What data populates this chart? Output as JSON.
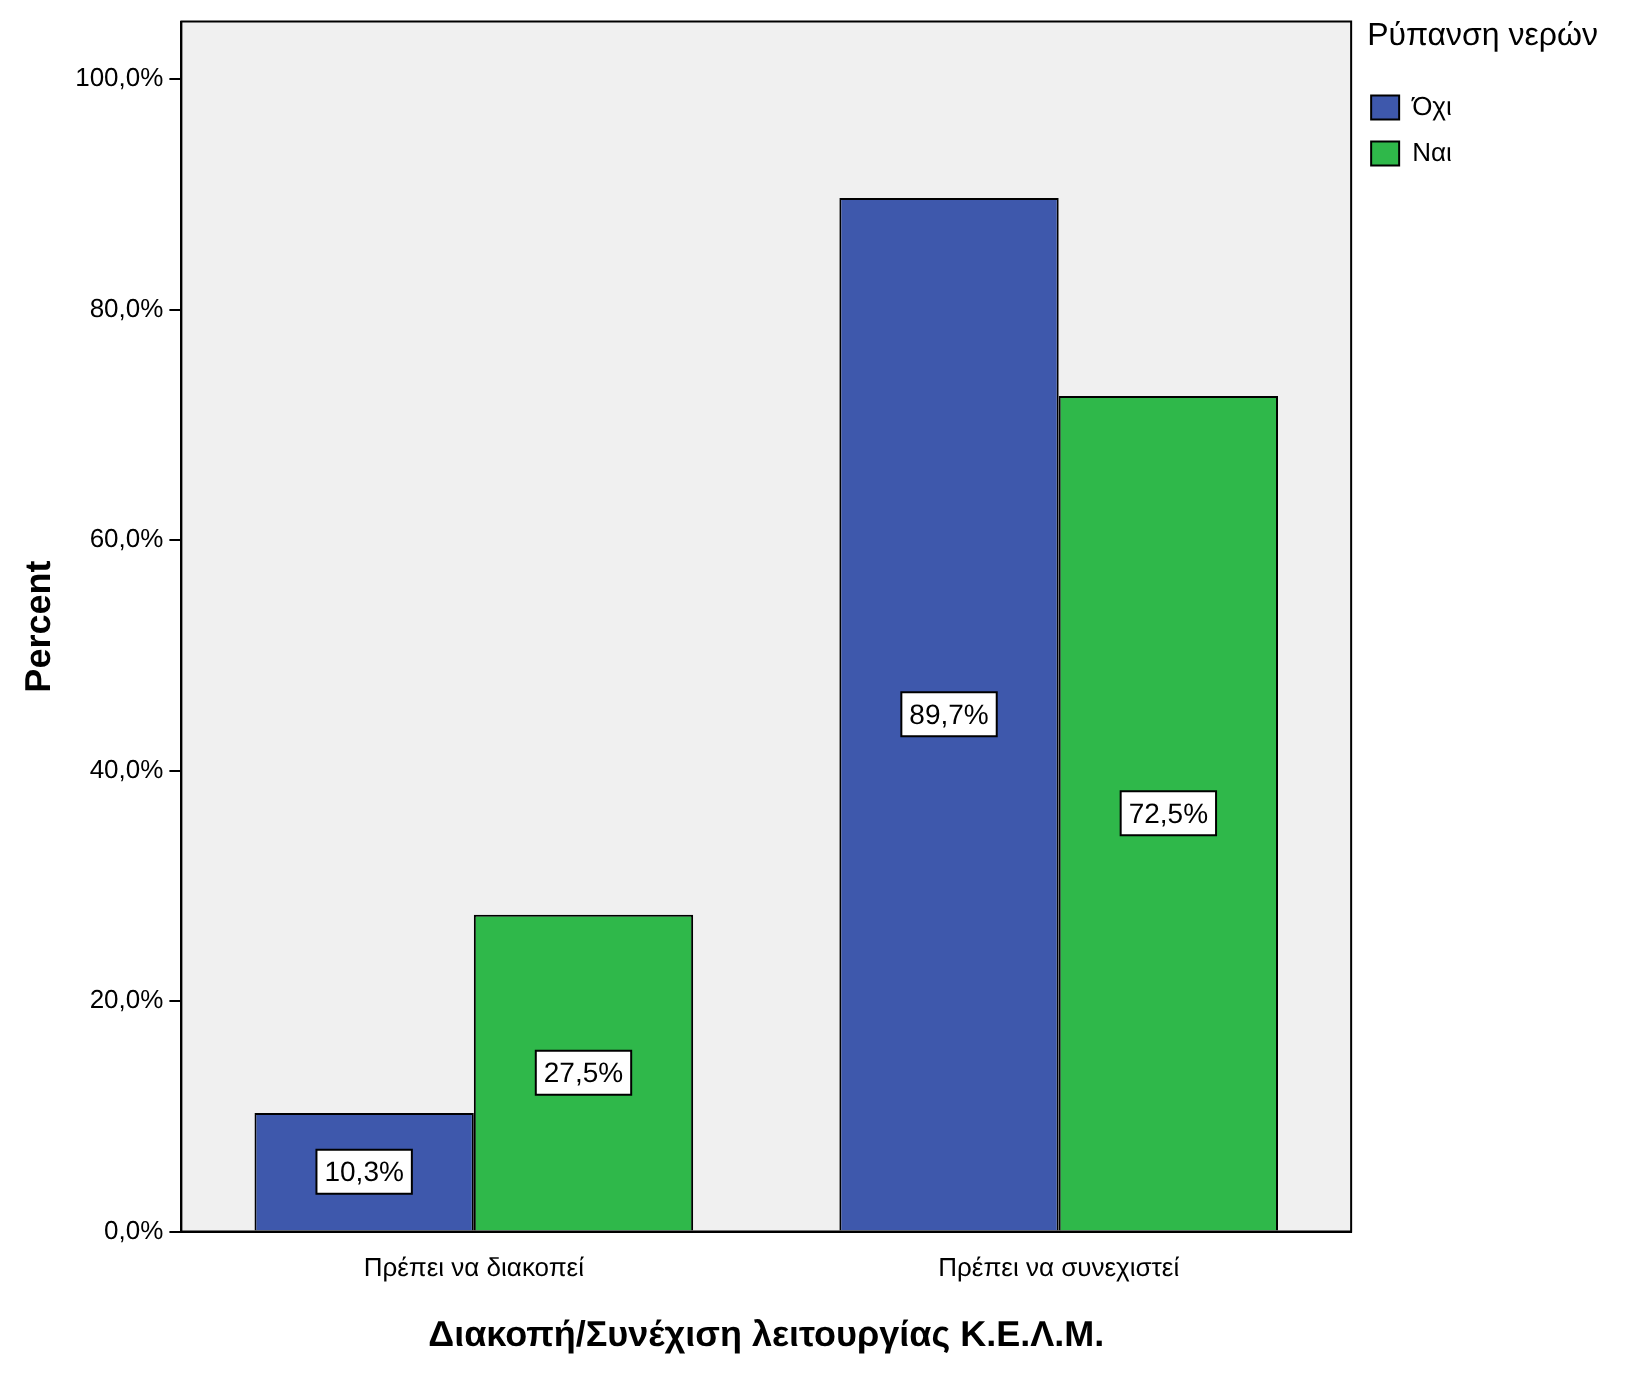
{
  "chart_data": {
    "type": "bar",
    "xlabel": "Διακοπή/Συνέχιση λειτουργίας Κ.Ε.Λ.Μ.",
    "ylabel": "Percent",
    "legend_title": "Ρύπανση νερών",
    "categories": [
      "Πρέπει να διακοπεί",
      "Πρέπει να συνεχιστεί"
    ],
    "series": [
      {
        "name": "Όχι",
        "color": "#3e58ac",
        "values": [
          10.3,
          89.7
        ],
        "value_labels": [
          "10,3%",
          "89,7%"
        ]
      },
      {
        "name": "Ναι",
        "color": "#2fb84a",
        "values": [
          27.5,
          72.5
        ],
        "value_labels": [
          "27,5%",
          "72,5%"
        ]
      }
    ],
    "ylim": [
      0,
      105
    ],
    "yticks": [
      {
        "value": 0,
        "label": "0,0%"
      },
      {
        "value": 20,
        "label": "20,0%"
      },
      {
        "value": 40,
        "label": "40,0%"
      },
      {
        "value": 60,
        "label": "60,0%"
      },
      {
        "value": 80,
        "label": "80,0%"
      },
      {
        "value": 100,
        "label": "100,0%"
      }
    ],
    "grid": false,
    "legend": "top right"
  }
}
